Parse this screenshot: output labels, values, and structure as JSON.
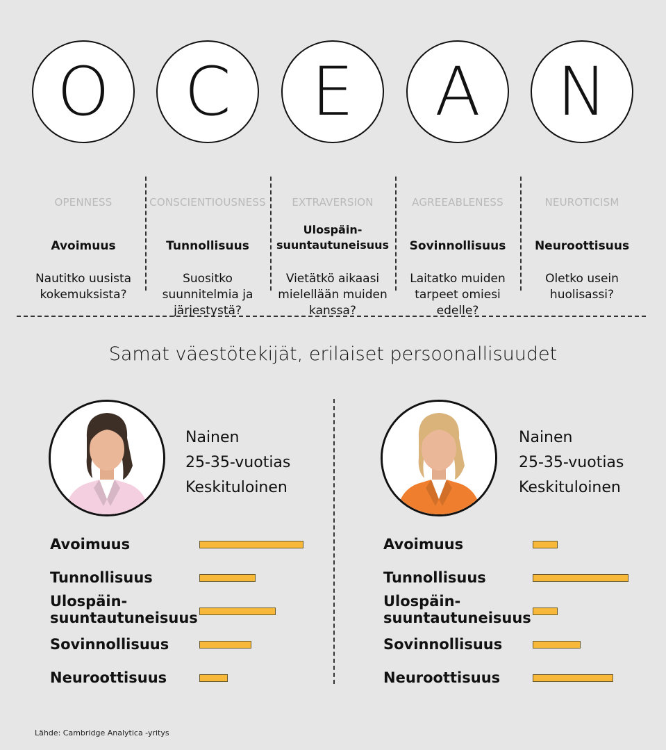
{
  "traits": [
    {
      "letter": "O",
      "english": "OPENNESS",
      "finnish": "Avoimuus",
      "question": "Nautitko uusista kokemuksista?"
    },
    {
      "letter": "C",
      "english": "CONSCIENTIOUSNESS",
      "finnish": "Tunnollisuus",
      "question": "Suositko suunnitelmia ja järjestystä?"
    },
    {
      "letter": "E",
      "english": "EXTRAVERSION",
      "finnish": "Ulospäin-suuntautuneisuus",
      "question": "Vietätkö aikaasi mielellään muiden kanssa?"
    },
    {
      "letter": "A",
      "english": "AGREEABLENESS",
      "finnish": "Sovinnollisuus",
      "question": "Laitatko muiden tarpeet omiesi edelle?"
    },
    {
      "letter": "N",
      "english": "NEUROTICISM",
      "finnish": "Neuroottisuus",
      "question": "Oletko usein huolisassi?"
    }
  ],
  "headline": "Samat väestötekijät, erilaiset persoonallisuudet",
  "persons": [
    {
      "gender": "Nainen",
      "age": "25-35-vuotias",
      "income": "Keskituloinen",
      "hair_color": "#3d2f26",
      "jacket_color": "#f4cfe0",
      "scores": [
        {
          "trait": "Avoimuus",
          "value": 1.0
        },
        {
          "trait": "Tunnollisuus",
          "value": 0.54
        },
        {
          "trait": "Ulospäin-suuntautuneisuus",
          "value": 0.73
        },
        {
          "trait": "Sovinnollisuus",
          "value": 0.5
        },
        {
          "trait": "Neuroottisuus",
          "value": 0.27
        }
      ]
    },
    {
      "gender": "Nainen",
      "age": "25-35-vuotias",
      "income": "Keskituloinen",
      "hair_color": "#d9b37a",
      "jacket_color": "#ef7f2e",
      "scores": [
        {
          "trait": "Avoimuus",
          "value": 0.24
        },
        {
          "trait": "Tunnollisuus",
          "value": 0.92
        },
        {
          "trait": "Ulospäin-suuntautuneisuus",
          "value": 0.24
        },
        {
          "trait": "Sovinnollisuus",
          "value": 0.46
        },
        {
          "trait": "Neuroottisuus",
          "value": 0.77
        }
      ]
    }
  ],
  "source": "Lähde: Cambridge Analytica -yritys"
}
